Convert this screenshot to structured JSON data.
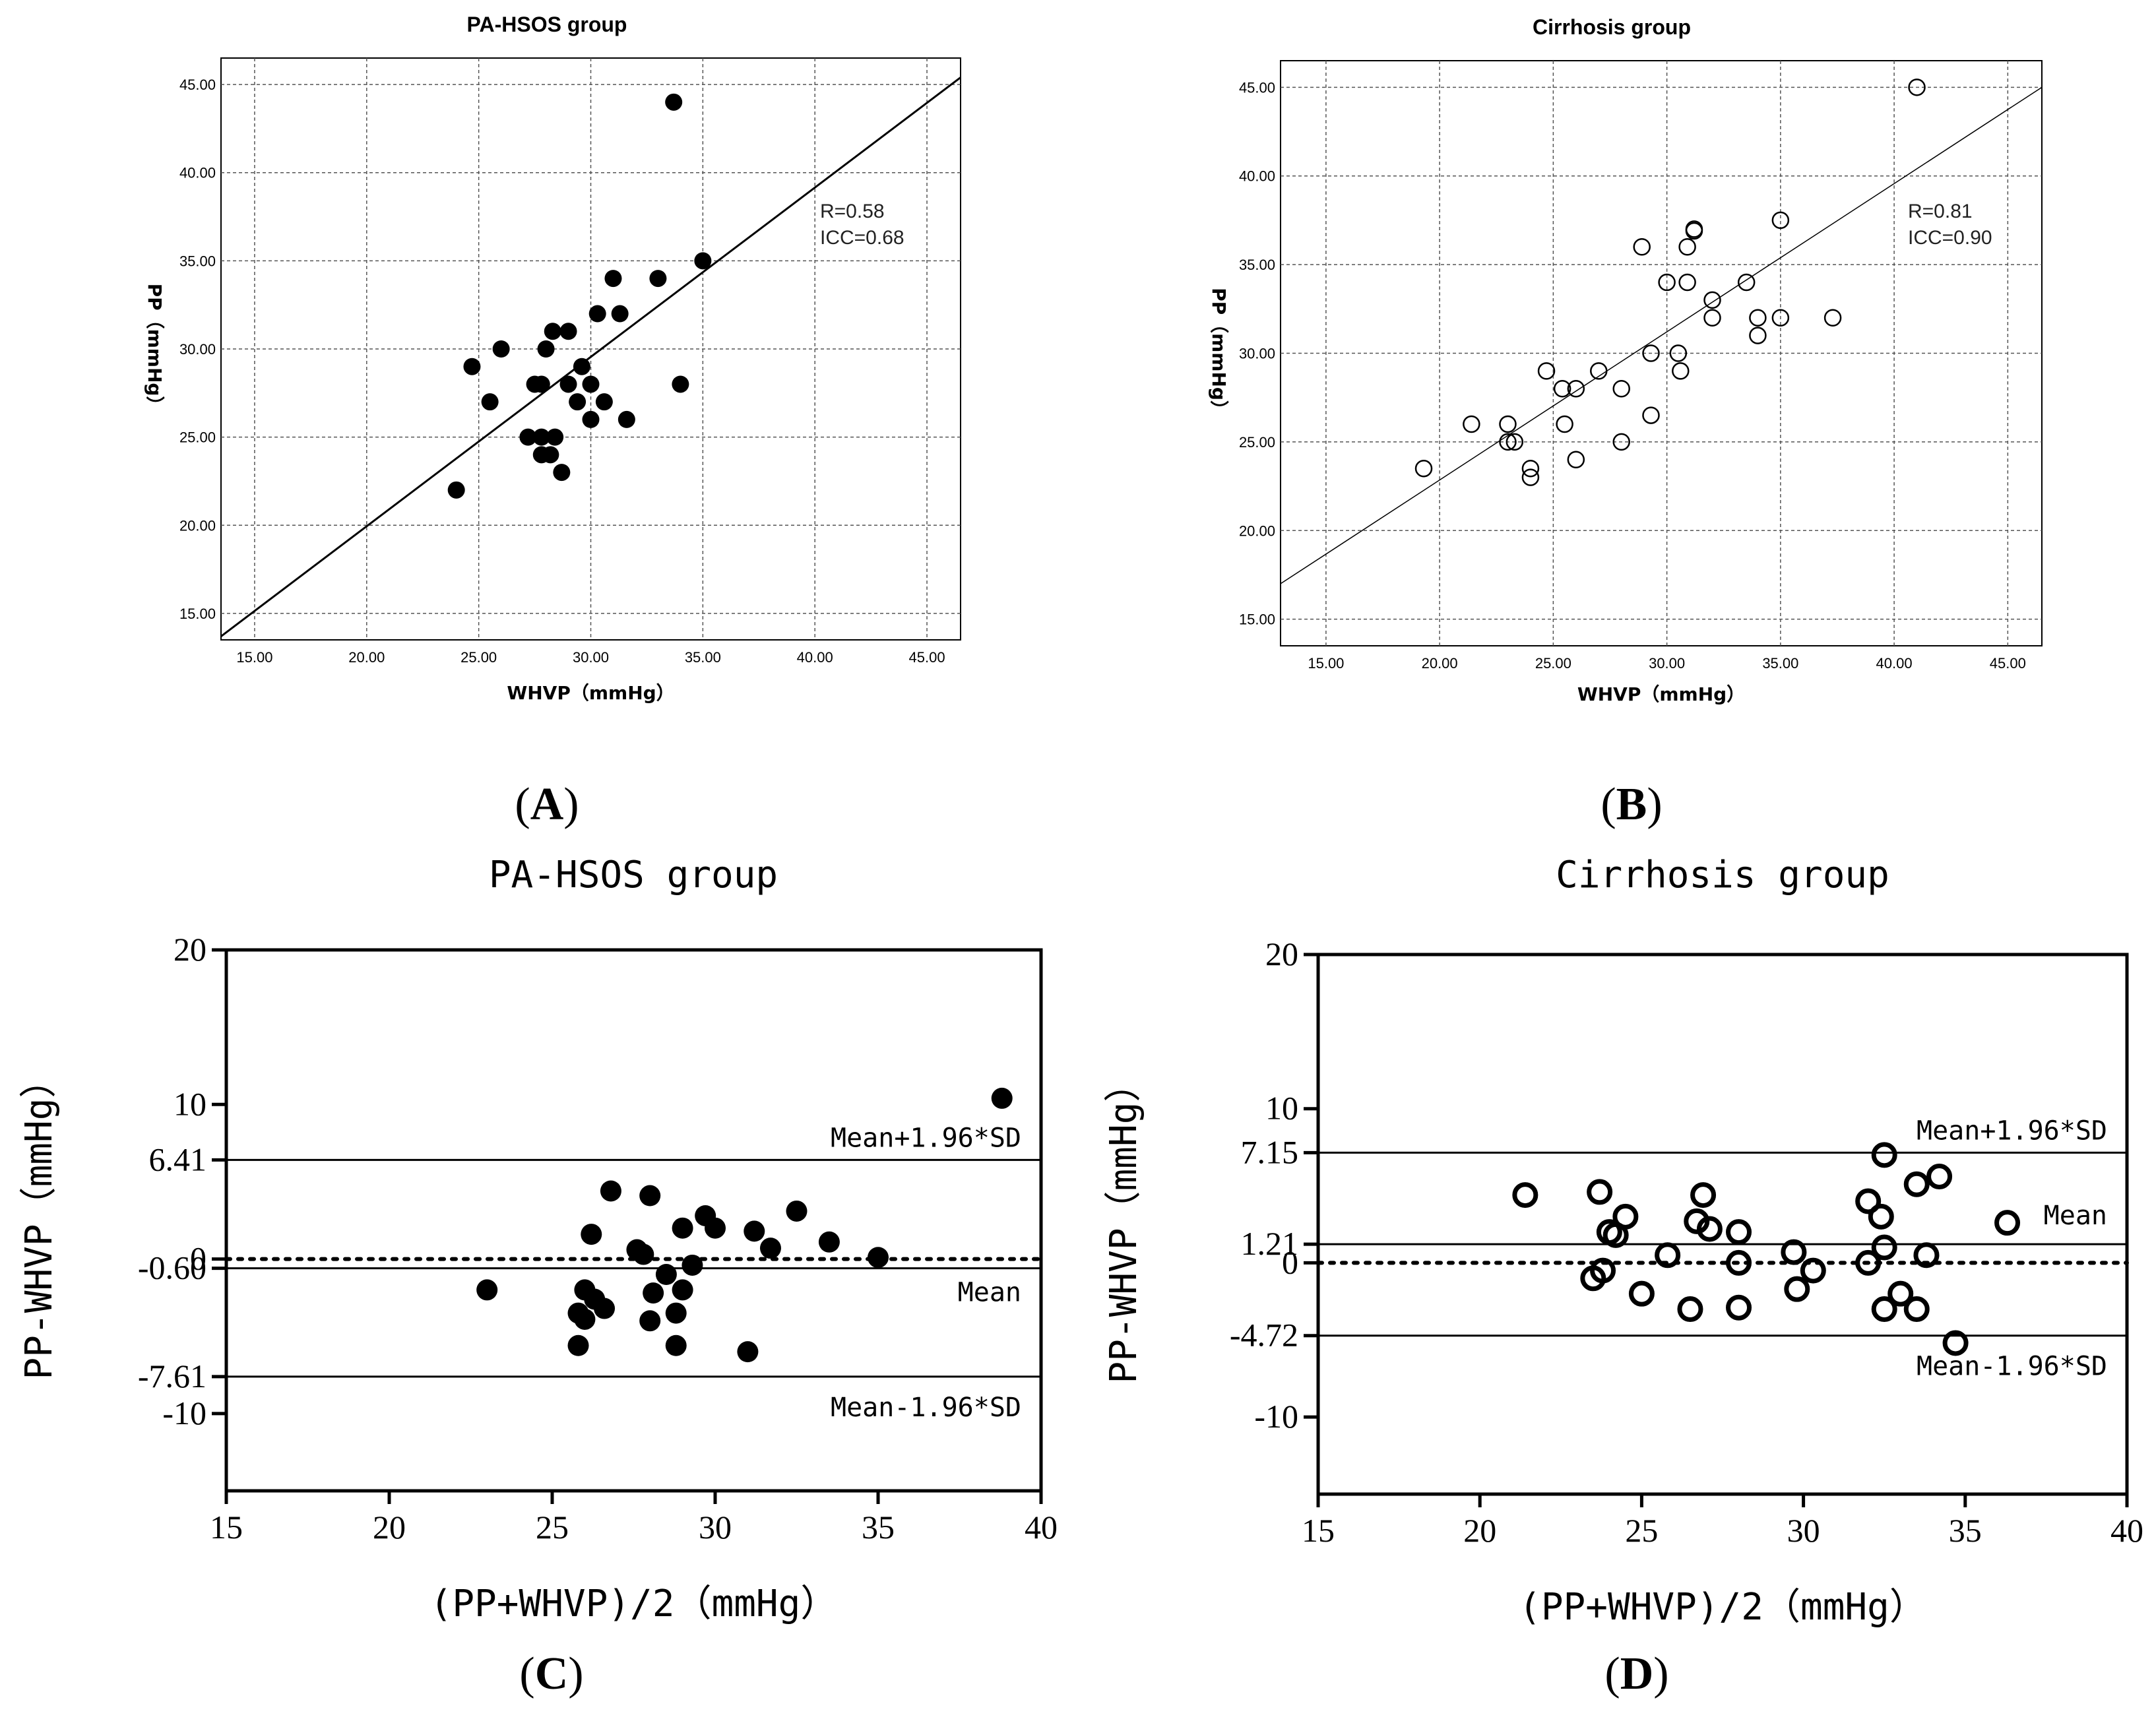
{
  "panels": [
    {
      "letter": "A",
      "chart_data": {
        "type": "scatter",
        "title": "PA-HSOS group",
        "xlabel": "WHVP（mmHg）",
        "ylabel": "PP（mmHg）",
        "xlim": [
          13.5,
          46.5
        ],
        "ylim": [
          13.5,
          46.5
        ],
        "xticks": [
          "15.00",
          "20.00",
          "25.00",
          "30.00",
          "35.00",
          "40.00",
          "45.00"
        ],
        "yticks": [
          "15.00",
          "20.00",
          "25.00",
          "30.00",
          "35.00",
          "40.00",
          "45.00"
        ],
        "grid": true,
        "marker": "filled",
        "annotations": [
          "R=0.58",
          "ICC=0.68"
        ],
        "fit_line": {
          "x": [
            13.5,
            46.5
          ],
          "y": [
            13.7,
            45.4
          ]
        },
        "points": [
          [
            24.0,
            22.0
          ],
          [
            24.7,
            29.0
          ],
          [
            25.5,
            27.0
          ],
          [
            26.0,
            30.0
          ],
          [
            27.2,
            25.0
          ],
          [
            27.5,
            28.0
          ],
          [
            27.8,
            28.0
          ],
          [
            27.8,
            24.0
          ],
          [
            27.8,
            25.0
          ],
          [
            28.0,
            30.0
          ],
          [
            28.2,
            24.0
          ],
          [
            28.3,
            31.0
          ],
          [
            28.4,
            25.0
          ],
          [
            28.7,
            23.0
          ],
          [
            29.0,
            31.0
          ],
          [
            29.0,
            28.0
          ],
          [
            29.4,
            27.0
          ],
          [
            29.6,
            29.0
          ],
          [
            30.0,
            28.0
          ],
          [
            30.0,
            26.0
          ],
          [
            30.3,
            32.0
          ],
          [
            30.6,
            27.0
          ],
          [
            31.0,
            34.0
          ],
          [
            31.3,
            32.0
          ],
          [
            31.6,
            26.0
          ],
          [
            33.0,
            34.0
          ],
          [
            33.7,
            44.0
          ],
          [
            34.0,
            28.0
          ],
          [
            35.0,
            35.0
          ]
        ]
      }
    },
    {
      "letter": "B",
      "chart_data": {
        "type": "scatter",
        "title": "Cirrhosis group",
        "xlabel": "WHVP（mmHg）",
        "ylabel": "PP（mmHg）",
        "xlim": [
          13.0,
          46.5
        ],
        "ylim": [
          13.5,
          46.5
        ],
        "xticks": [
          "15.00",
          "20.00",
          "25.00",
          "30.00",
          "35.00",
          "40.00",
          "45.00"
        ],
        "yticks": [
          "15.00",
          "20.00",
          "25.00",
          "30.00",
          "35.00",
          "40.00",
          "45.00"
        ],
        "grid": true,
        "marker": "hollow",
        "annotations": [
          "R=0.81",
          "ICC=0.90"
        ],
        "fit_line": {
          "x": [
            13.0,
            46.5
          ],
          "y": [
            17.0,
            45.0
          ]
        },
        "points": [
          [
            19.3,
            23.5
          ],
          [
            21.4,
            26.0
          ],
          [
            23.0,
            26.0
          ],
          [
            23.0,
            25.0
          ],
          [
            23.3,
            25.0
          ],
          [
            24.0,
            23.5
          ],
          [
            24.0,
            23.0
          ],
          [
            24.7,
            29.0
          ],
          [
            25.4,
            28.0
          ],
          [
            25.5,
            26.0
          ],
          [
            26.0,
            28.0
          ],
          [
            26.0,
            24.0
          ],
          [
            27.0,
            29.0
          ],
          [
            28.0,
            28.0
          ],
          [
            28.0,
            25.0
          ],
          [
            28.9,
            36.0
          ],
          [
            29.3,
            30.0
          ],
          [
            29.3,
            26.5
          ],
          [
            30.0,
            34.0
          ],
          [
            30.5,
            30.0
          ],
          [
            30.6,
            29.0
          ],
          [
            30.9,
            36.0
          ],
          [
            30.9,
            34.0
          ],
          [
            31.2,
            37.0
          ],
          [
            31.2,
            36.9
          ],
          [
            32.0,
            33.0
          ],
          [
            32.0,
            32.0
          ],
          [
            33.5,
            34.0
          ],
          [
            34.0,
            32.0
          ],
          [
            34.0,
            31.0
          ],
          [
            35.0,
            37.5
          ],
          [
            35.0,
            32.0
          ],
          [
            37.3,
            32.0
          ],
          [
            41.0,
            45.0
          ]
        ]
      }
    },
    {
      "letter": "C",
      "chart_data": {
        "type": "scatter",
        "title": "PA-HSOS group",
        "xlabel": "(PP+WHVP)/2（mmHg）",
        "ylabel": "PP-WHVP（mmHg）",
        "xlim": [
          15,
          40
        ],
        "ylim": [
          -15,
          20
        ],
        "xticks": [
          "15",
          "20",
          "25",
          "30",
          "35",
          "40"
        ],
        "yticks": [
          "20",
          "10",
          "6.41",
          "0",
          "-0.60",
          "-7.61",
          "-10"
        ],
        "ytick_values": [
          20,
          10,
          6.41,
          0,
          -0.6,
          -7.61,
          -10
        ],
        "grid": false,
        "marker": "filled",
        "reference_lines": [
          {
            "label": "Mean+1.96*SD",
            "y": 6.41,
            "style": "solid"
          },
          {
            "label": "",
            "y": 0,
            "style": "dotted"
          },
          {
            "label": "Mean",
            "y": -0.6,
            "style": "solid"
          },
          {
            "label": "Mean-1.96*SD",
            "y": -7.61,
            "style": "solid"
          }
        ],
        "points": [
          [
            23.0,
            -2.0
          ],
          [
            25.8,
            -3.5
          ],
          [
            25.8,
            -5.6
          ],
          [
            26.0,
            -2.0
          ],
          [
            26.0,
            -3.9
          ],
          [
            26.2,
            1.6
          ],
          [
            26.3,
            -2.6
          ],
          [
            26.6,
            -3.2
          ],
          [
            26.8,
            4.4
          ],
          [
            27.6,
            0.6
          ],
          [
            27.8,
            0.3
          ],
          [
            28.0,
            4.1
          ],
          [
            28.0,
            -4.0
          ],
          [
            28.1,
            -2.2
          ],
          [
            28.5,
            -1.0
          ],
          [
            28.8,
            -3.5
          ],
          [
            28.8,
            -5.6
          ],
          [
            29.0,
            2.0
          ],
          [
            29.0,
            -2.0
          ],
          [
            29.3,
            -0.4
          ],
          [
            29.7,
            2.8
          ],
          [
            30.0,
            2.0
          ],
          [
            31.0,
            -6.0
          ],
          [
            31.2,
            1.8
          ],
          [
            31.7,
            0.7
          ],
          [
            32.5,
            3.1
          ],
          [
            33.5,
            1.1
          ],
          [
            35.0,
            0.1
          ],
          [
            38.8,
            10.4
          ]
        ]
      }
    },
    {
      "letter": "D",
      "chart_data": {
        "type": "scatter",
        "title": "Cirrhosis group",
        "xlabel": "(PP+WHVP)/2（mmHg）",
        "ylabel": "PP-WHVP（mmHg）",
        "xlim": [
          15,
          40
        ],
        "ylim": [
          -15,
          20
        ],
        "xticks": [
          "15",
          "20",
          "25",
          "30",
          "35",
          "40"
        ],
        "yticks": [
          "20",
          "10",
          "7.15",
          "1.21",
          "0",
          "-4.72",
          "-10"
        ],
        "ytick_values": [
          20,
          10,
          7.15,
          1.21,
          0,
          -4.72,
          -10
        ],
        "grid": false,
        "marker": "hollow",
        "reference_lines": [
          {
            "label": "Mean+1.96*SD",
            "y": 7.15,
            "style": "solid"
          },
          {
            "label": "Mean",
            "y": 1.21,
            "style": "solid"
          },
          {
            "label": "",
            "y": 0,
            "style": "dotted"
          },
          {
            "label": "Mean-1.96*SD",
            "y": -4.72,
            "style": "solid"
          }
        ],
        "points": [
          [
            21.4,
            4.4
          ],
          [
            23.5,
            -1.0
          ],
          [
            23.7,
            4.6
          ],
          [
            23.8,
            -0.5
          ],
          [
            24.0,
            2.0
          ],
          [
            24.2,
            1.8
          ],
          [
            24.5,
            3.0
          ],
          [
            25.0,
            -2.0
          ],
          [
            25.8,
            0.5
          ],
          [
            26.5,
            -3.0
          ],
          [
            26.7,
            2.7
          ],
          [
            26.9,
            4.4
          ],
          [
            27.1,
            2.2
          ],
          [
            28.0,
            2.0
          ],
          [
            28.0,
            -2.9
          ],
          [
            28.0,
            0.0
          ],
          [
            29.7,
            0.7
          ],
          [
            29.8,
            -1.7
          ],
          [
            30.3,
            -0.5
          ],
          [
            32.0,
            4.0
          ],
          [
            32.0,
            0.0
          ],
          [
            32.4,
            3.0
          ],
          [
            32.5,
            1.0
          ],
          [
            32.5,
            -3.0
          ],
          [
            32.5,
            7.0
          ],
          [
            33.0,
            -2.0
          ],
          [
            33.5,
            5.1
          ],
          [
            33.5,
            -3.0
          ],
          [
            33.8,
            0.5
          ],
          [
            34.2,
            5.6
          ],
          [
            34.7,
            -5.2
          ],
          [
            36.3,
            2.6
          ]
        ]
      }
    }
  ]
}
